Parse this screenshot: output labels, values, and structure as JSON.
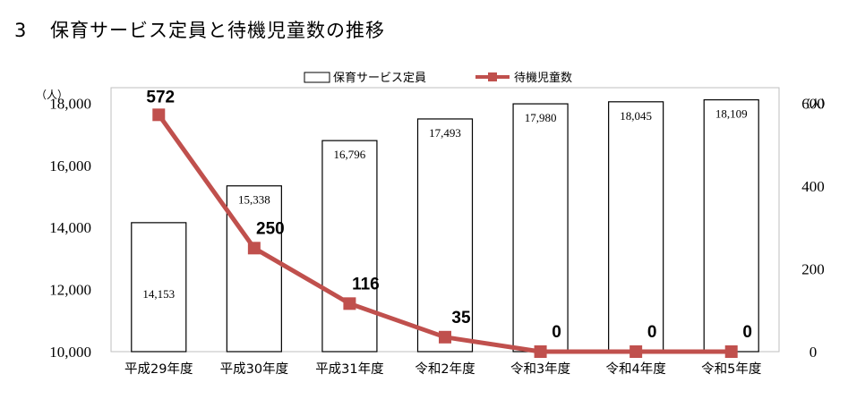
{
  "title": {
    "number": "3",
    "text": "保育サービス定員と待機児童数の推移"
  },
  "chart_data": {
    "type": "bar",
    "title": "保育サービス定員と待機児童数の推移",
    "categories": [
      "平成29年度",
      "平成30年度",
      "平成31年度",
      "令和2年度",
      "令和3年度",
      "令和4年度",
      "令和5年度"
    ],
    "series": [
      {
        "name": "保育サービス定員",
        "type": "bar",
        "axis": "left",
        "values": [
          14153,
          15338,
          16796,
          17493,
          17980,
          18045,
          18109
        ],
        "labels": [
          "14,153",
          "15,338",
          "16,796",
          "17,493",
          "17,980",
          "18,045",
          "18,109"
        ],
        "color": "#ffffff",
        "stroke": "#000000"
      },
      {
        "name": "待機児童数",
        "type": "line",
        "axis": "right",
        "values": [
          572,
          250,
          116,
          35,
          0,
          0,
          0
        ],
        "labels": [
          "572",
          "250",
          "116",
          "35",
          "0",
          "0",
          "0"
        ],
        "color": "#c0504d"
      }
    ],
    "y_left": {
      "unit": "（人）",
      "ylim": [
        10000,
        18000
      ],
      "ticks": [
        10000,
        12000,
        14000,
        16000,
        18000
      ],
      "tick_labels": [
        "10,000",
        "12,000",
        "14,000",
        "16,000",
        "18,000"
      ]
    },
    "y_right": {
      "unit": "（人）",
      "ylim": [
        0,
        600
      ],
      "ticks": [
        0,
        200,
        400,
        600
      ],
      "tick_labels": [
        "0",
        "200",
        "400",
        "600"
      ]
    },
    "grid": false,
    "legend": "top-center"
  }
}
